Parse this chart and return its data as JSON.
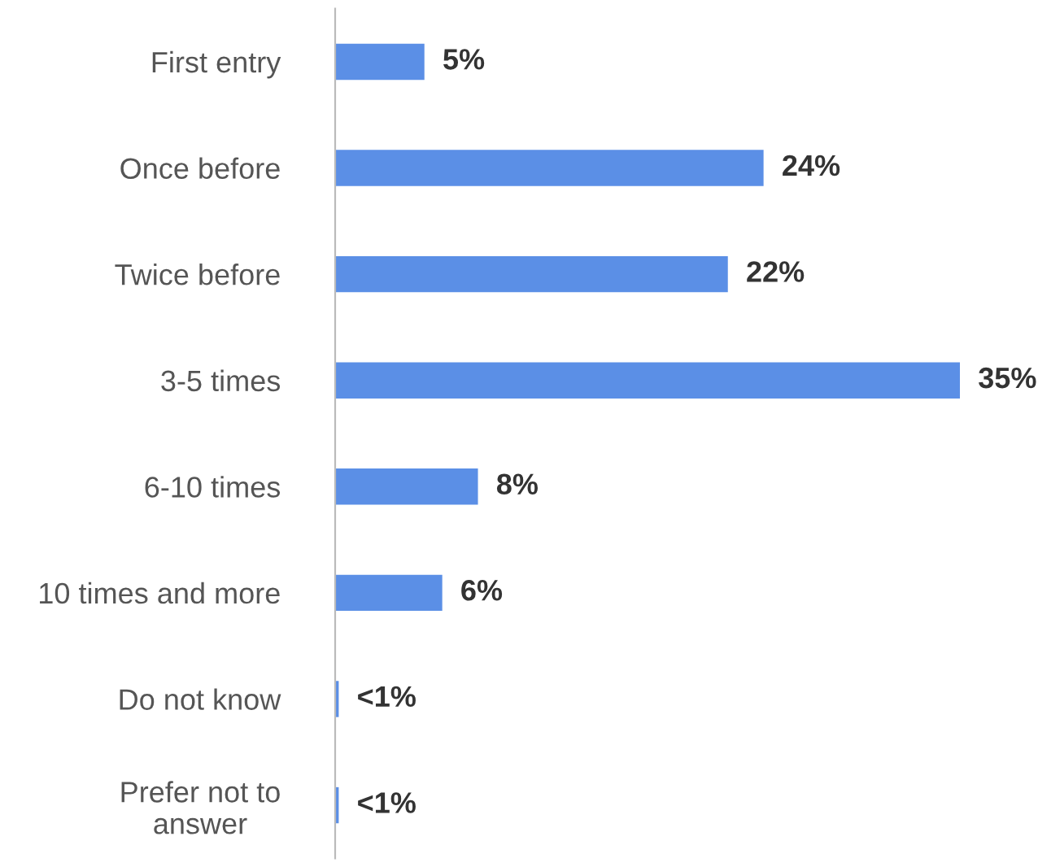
{
  "chart_data": {
    "type": "bar",
    "orientation": "horizontal",
    "categories": [
      "First entry",
      "Once before",
      "Twice before",
      "3-5 times",
      "6-10 times",
      "10 times and more",
      "Do not know",
      "Prefer not to\nanswer"
    ],
    "values": [
      5,
      24,
      22,
      35,
      8,
      6,
      0.2,
      0.2
    ],
    "value_labels": [
      "5%",
      "24%",
      "22%",
      "35%",
      "8%",
      "6%",
      "<1%",
      "<1%"
    ],
    "color": "#5b8fe6",
    "grid": false,
    "legend": false
  }
}
